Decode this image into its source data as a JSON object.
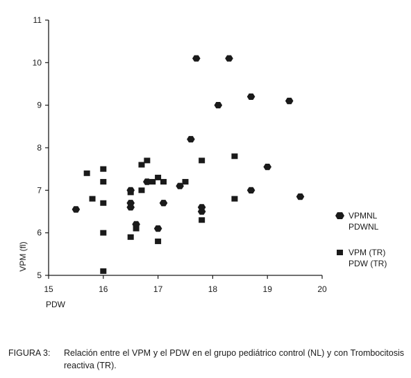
{
  "chart_data": {
    "type": "scatter",
    "xlabel": "PDW",
    "ylabel": "VPM (fl)",
    "xlim": [
      15,
      20
    ],
    "ylim": [
      5,
      11
    ],
    "xticks": [
      "15",
      "16",
      "17",
      "18",
      "19",
      "20"
    ],
    "yticks": [
      "5",
      "6",
      "7",
      "8",
      "9",
      "10",
      "11"
    ],
    "grid": false,
    "legend_position": "right",
    "series": [
      {
        "name": "VPMNL PDWNL",
        "legend_lines": [
          "VPMNL",
          "PDWNL"
        ],
        "marker": "hexagon",
        "points": [
          {
            "x": 15.5,
            "y": 6.55
          },
          {
            "x": 16.5,
            "y": 7.0
          },
          {
            "x": 16.5,
            "y": 6.7
          },
          {
            "x": 16.5,
            "y": 6.6
          },
          {
            "x": 16.6,
            "y": 6.2
          },
          {
            "x": 16.8,
            "y": 7.2
          },
          {
            "x": 17.0,
            "y": 6.1
          },
          {
            "x": 17.1,
            "y": 6.7
          },
          {
            "x": 17.4,
            "y": 7.1
          },
          {
            "x": 17.6,
            "y": 8.2
          },
          {
            "x": 17.7,
            "y": 10.1
          },
          {
            "x": 17.8,
            "y": 6.6
          },
          {
            "x": 17.8,
            "y": 6.5
          },
          {
            "x": 18.1,
            "y": 9.0
          },
          {
            "x": 18.3,
            "y": 10.1
          },
          {
            "x": 18.7,
            "y": 9.2
          },
          {
            "x": 18.7,
            "y": 7.0
          },
          {
            "x": 19.0,
            "y": 7.55
          },
          {
            "x": 19.4,
            "y": 9.1
          },
          {
            "x": 19.6,
            "y": 6.85
          }
        ]
      },
      {
        "name": "VPM (TR) PDW (TR)",
        "legend_lines": [
          "VPM (TR)",
          "PDW (TR)"
        ],
        "marker": "square",
        "points": [
          {
            "x": 15.7,
            "y": 7.4
          },
          {
            "x": 15.8,
            "y": 6.8
          },
          {
            "x": 16.0,
            "y": 7.5
          },
          {
            "x": 16.0,
            "y": 7.2
          },
          {
            "x": 16.0,
            "y": 6.7
          },
          {
            "x": 16.0,
            "y": 6.0
          },
          {
            "x": 16.0,
            "y": 5.1
          },
          {
            "x": 16.5,
            "y": 6.95
          },
          {
            "x": 16.5,
            "y": 5.9
          },
          {
            "x": 16.6,
            "y": 6.1
          },
          {
            "x": 16.7,
            "y": 7.6
          },
          {
            "x": 16.7,
            "y": 7.0
          },
          {
            "x": 16.8,
            "y": 7.7
          },
          {
            "x": 16.9,
            "y": 7.2
          },
          {
            "x": 17.0,
            "y": 7.3
          },
          {
            "x": 17.0,
            "y": 5.8
          },
          {
            "x": 17.1,
            "y": 7.2
          },
          {
            "x": 17.5,
            "y": 7.2
          },
          {
            "x": 17.8,
            "y": 7.7
          },
          {
            "x": 17.8,
            "y": 6.3
          },
          {
            "x": 18.4,
            "y": 7.8
          },
          {
            "x": 18.4,
            "y": 6.8
          }
        ]
      }
    ]
  },
  "caption": {
    "label": "FIGURA 3:",
    "text": "Relación entre el VPM y el PDW en el grupo pediátrico control (NL) y con Trombocitosis reactiva (TR)."
  }
}
